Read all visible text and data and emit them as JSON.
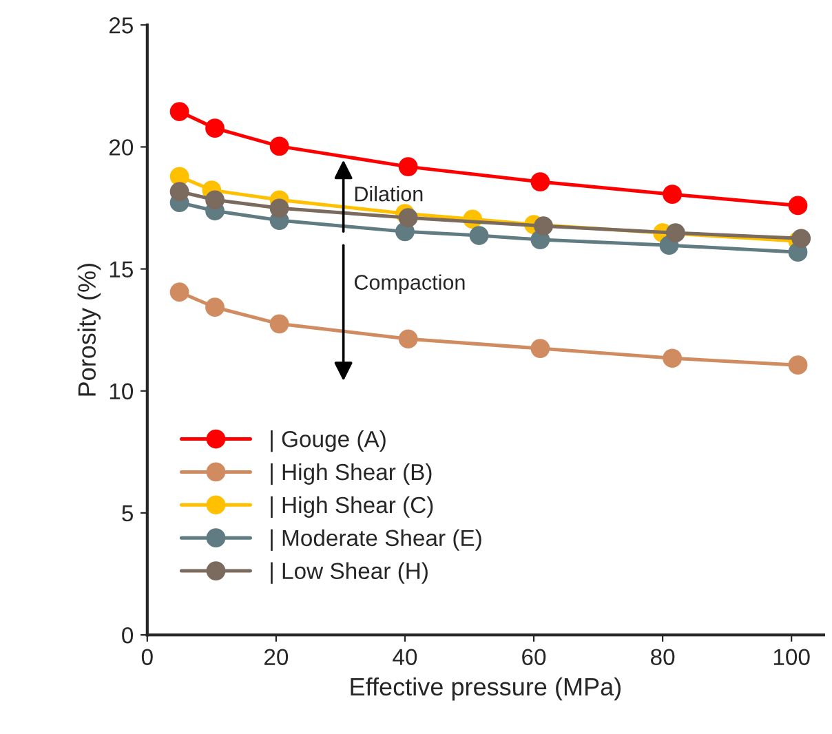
{
  "chart_data": {
    "type": "line",
    "xlabel": "Effective pressure (MPa)",
    "ylabel": "Porosity (%)",
    "xlim": [
      0,
      105
    ],
    "xticks": [
      0,
      20,
      40,
      60,
      80,
      100
    ],
    "ylim": [
      0,
      25
    ],
    "yticks": [
      0,
      5,
      10,
      15,
      20,
      25
    ],
    "marker": "circle",
    "line_style": "solid",
    "grid": false,
    "legend": "bottom left",
    "annotations": [
      "Dilation",
      "Compaction"
    ],
    "series": [
      {
        "name": "| Gouge (A)",
        "color": "#ff0000",
        "x": [
          5,
          10.5,
          20.5,
          40.5,
          61,
          81.5,
          101
        ],
        "values": [
          21.45,
          20.77,
          20.03,
          19.19,
          18.57,
          18.06,
          17.6
        ]
      },
      {
        "name": "| High Shear (B)",
        "color": "#d08c60",
        "x": [
          5,
          10.5,
          20.5,
          40.5,
          61,
          81.5,
          101
        ],
        "values": [
          14.05,
          13.43,
          12.75,
          12.13,
          11.74,
          11.34,
          11.06
        ]
      },
      {
        "name": "| High Shear (C)",
        "color": "#ffc000",
        "x": [
          5,
          10,
          20.5,
          40,
          50.5,
          60,
          80,
          101
        ],
        "values": [
          18.79,
          18.23,
          17.83,
          17.27,
          17.04,
          16.82,
          16.48,
          16.14
        ]
      },
      {
        "name": "| Moderate Shear (E)",
        "color": "#607b82",
        "x": [
          5,
          10.5,
          20.5,
          40,
          51.5,
          61,
          81,
          101
        ],
        "values": [
          17.72,
          17.38,
          16.99,
          16.53,
          16.37,
          16.2,
          15.97,
          15.69
        ]
      },
      {
        "name": "| Low Shear (H)",
        "color": "#7b6a5e",
        "x": [
          5,
          10.5,
          20.5,
          40.5,
          61.5,
          82,
          101.5
        ],
        "values": [
          18.17,
          17.83,
          17.49,
          17.1,
          16.76,
          16.48,
          16.25
        ]
      }
    ]
  }
}
